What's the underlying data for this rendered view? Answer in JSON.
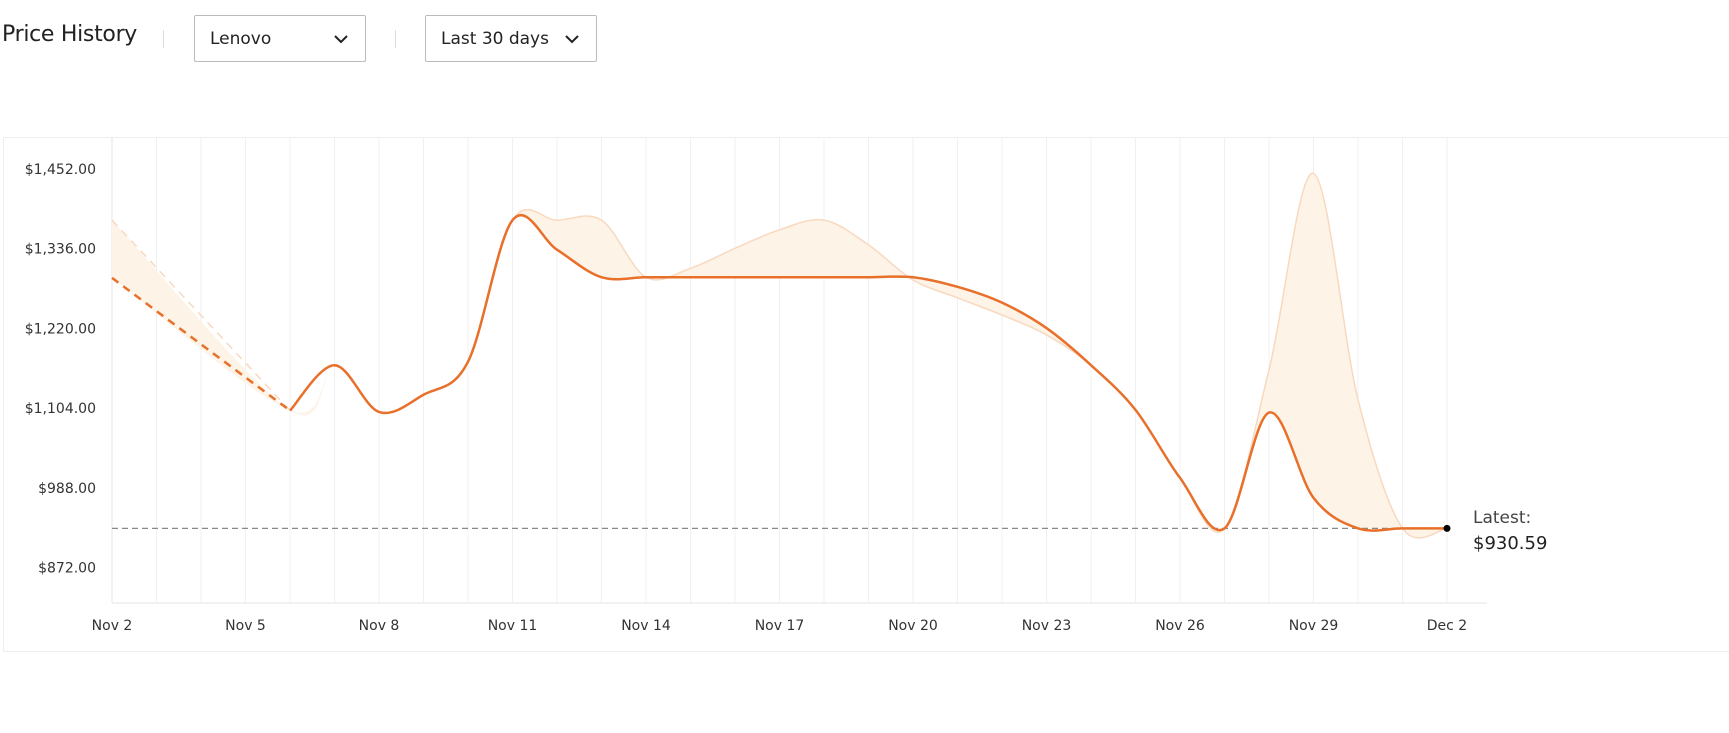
{
  "header": {
    "title": "Price History",
    "brand": "Lenovo",
    "range": "Last 30 days"
  },
  "chart_data": {
    "type": "line",
    "categories": [
      "Nov 2",
      null,
      null,
      "Nov 5",
      null,
      null,
      "Nov 8",
      null,
      null,
      "Nov 11",
      null,
      null,
      "Nov 14",
      null,
      null,
      "Nov 17",
      null,
      null,
      "Nov 20",
      null,
      null,
      "Nov 23",
      null,
      null,
      "Nov 26",
      null,
      null,
      "Nov 29",
      null,
      null,
      "Dec 2"
    ],
    "series": [
      {
        "color": "#e8702a",
        "values": [
          1295,
          null,
          null,
          null,
          1102,
          1168,
          1100,
          1125,
          1173,
          1379,
          1336,
          1296,
          1296,
          1296,
          1296,
          1296,
          1296,
          1296,
          1296,
          1282,
          1259,
          1222,
          1168,
          1103,
          1004,
          930.59,
          1099,
          975,
          930.59,
          930.59,
          930.59
        ]
      },
      {
        "color": "#f8d9c0",
        "values": [
          1379,
          null,
          null,
          null,
          1102,
          1168,
          1100,
          1125,
          1173,
          1379,
          1379,
          1379,
          1296,
          1309,
          1338,
          1365,
          1379,
          1343,
          1292,
          1266,
          1241,
          1212,
          1168,
          1103,
          1004,
          930.59,
          1161,
          1447,
          1118,
          930.59,
          930.59
        ]
      }
    ],
    "band_fill": "#fdf3e6",
    "ylim": [
      822,
      1500
    ],
    "yticks": [
      {
        "value": 872,
        "label": "$872.00"
      },
      {
        "value": 988,
        "label": "$988.00"
      },
      {
        "value": 1104,
        "label": "$1,104.00"
      },
      {
        "value": 1220,
        "label": "$1,220.00"
      },
      {
        "value": 1336,
        "label": "$1,336.00"
      },
      {
        "value": 1452,
        "label": "$1,452.00"
      }
    ],
    "grid": "x",
    "latest": {
      "label": "Latest:",
      "value": 930.59,
      "value_label": "$930.59"
    }
  }
}
